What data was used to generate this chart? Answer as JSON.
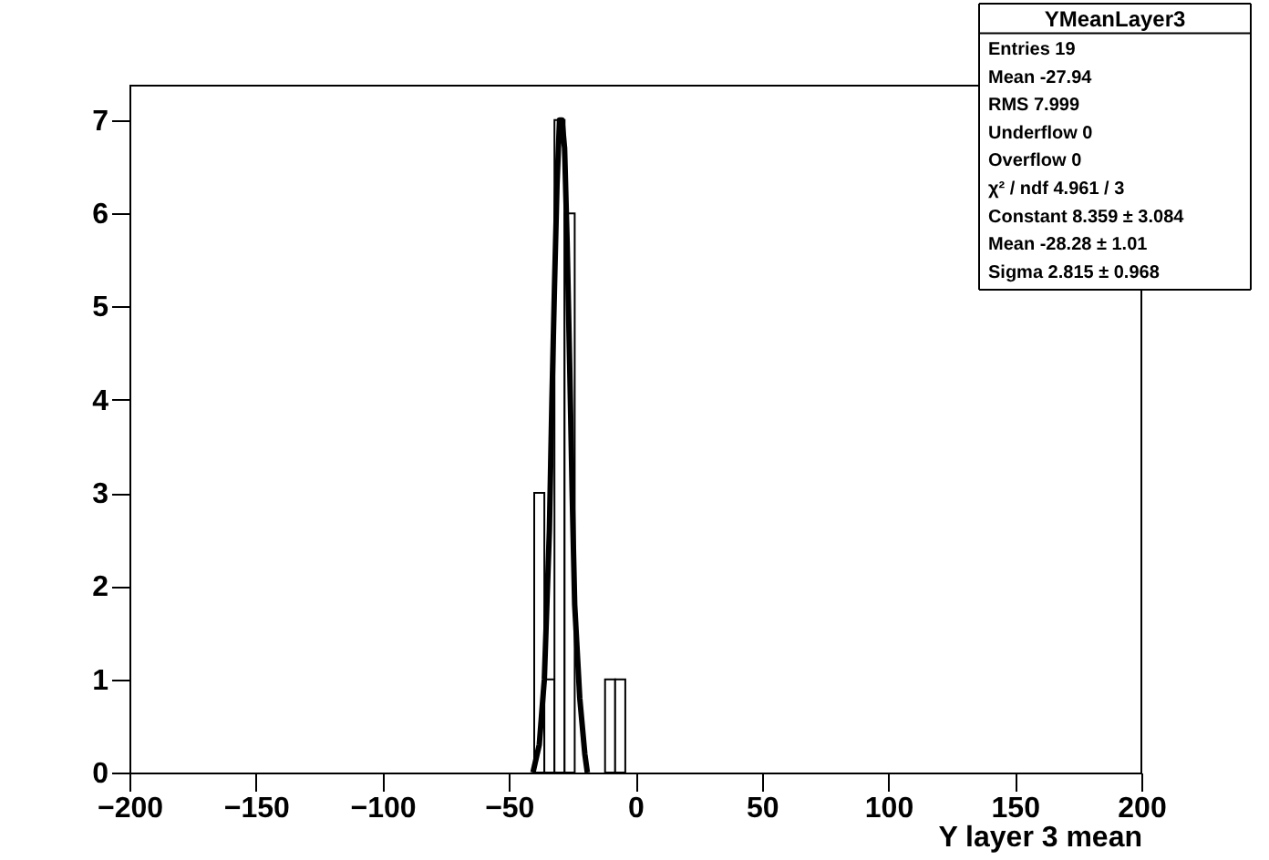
{
  "chart_data": {
    "type": "histogram",
    "xlabel": "Y layer 3 mean",
    "bins": [
      -40,
      -36,
      -32,
      -28,
      -24,
      -20,
      -16,
      -12,
      -8,
      -4
    ],
    "values": [
      3,
      1,
      7,
      6,
      0,
      0,
      0,
      1,
      1
    ],
    "color": "#ffffff",
    "series": [
      {
        "type": "line",
        "color": "#000000",
        "x": [
          -40.5,
          -38,
          -36,
          -34,
          -33,
          -32,
          -31,
          -30,
          -29,
          -28,
          -27,
          -26,
          -25,
          -24,
          -22,
          -20,
          -19
        ],
        "values": [
          0,
          0.3,
          1,
          2.6,
          4,
          5.2,
          6.3,
          7,
          7,
          6.7,
          5.7,
          4.4,
          3,
          1.8,
          0.8,
          0.2,
          0
        ]
      }
    ],
    "xlim": [
      -200,
      200
    ],
    "xticks": [
      -200,
      -150,
      -100,
      -50,
      0,
      50,
      100,
      150,
      200
    ],
    "ylim": [
      0,
      7.37
    ],
    "yticks": [
      0,
      1,
      2,
      3,
      4,
      5,
      6,
      7
    ],
    "grid": false,
    "annotations": [
      "YMeanLayer3",
      "Entries 19",
      "Mean -27.94",
      "RMS 7.999",
      "Underflow 0",
      "Overflow 0",
      "χ² / ndf 4.961 / 3",
      "Constant 8.359 ± 3.084",
      "Mean -28.28 ± 1.01",
      "Sigma 2.815 ± 0.968"
    ]
  }
}
